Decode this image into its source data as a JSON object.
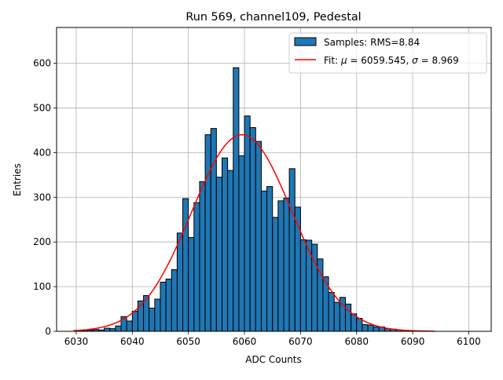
{
  "chart_data": {
    "type": "bar",
    "title": "Run 569, channel109, Pedestal",
    "xlabel": "ADC Counts",
    "ylabel": "Entries",
    "xlim": [
      6026.5,
      6104
    ],
    "ylim": [
      0,
      680
    ],
    "grid": true,
    "legend_position": "top-right",
    "x_ticks": [
      6030,
      6040,
      6050,
      6060,
      6070,
      6080,
      6090,
      6100
    ],
    "y_ticks": [
      0,
      100,
      200,
      300,
      400,
      500,
      600
    ],
    "histogram": {
      "name": "Samples: RMS=8.84",
      "color": "#1f77b4",
      "bin_width": 1,
      "bin_starts": [
        6030,
        6031,
        6032,
        6033,
        6034,
        6035,
        6036,
        6037,
        6038,
        6039,
        6040,
        6041,
        6042,
        6043,
        6044,
        6045,
        6046,
        6047,
        6048,
        6049,
        6050,
        6051,
        6052,
        6053,
        6054,
        6055,
        6056,
        6057,
        6058,
        6059,
        6060,
        6061,
        6062,
        6063,
        6064,
        6065,
        6066,
        6067,
        6068,
        6069,
        6070,
        6071,
        6072,
        6073,
        6074,
        6075,
        6076,
        6077,
        6078,
        6079,
        6080,
        6081,
        6082,
        6083,
        6084,
        6085,
        6086,
        6087,
        6088,
        6089,
        6090,
        6091,
        6092,
        6093
      ],
      "counts": [
        1,
        1,
        3,
        4,
        3,
        7,
        6,
        12,
        33,
        23,
        45,
        68,
        80,
        52,
        72,
        110,
        117,
        138,
        220,
        297,
        210,
        288,
        335,
        440,
        454,
        345,
        388,
        360,
        590,
        393,
        482,
        456,
        425,
        314,
        324,
        255,
        292,
        298,
        364,
        278,
        205,
        204,
        195,
        162,
        122,
        87,
        65,
        76,
        61,
        39,
        29,
        15,
        14,
        10,
        10,
        6,
        5,
        3,
        2,
        1,
        1,
        1,
        1,
        0
      ]
    },
    "fit": {
      "name": "Fit: μ = 6059.545, σ = 8.969",
      "color": "#ff0000",
      "mu": 6059.545,
      "sigma": 8.969,
      "amplitude": 440,
      "x_range": [
        6029.5,
        6094
      ]
    }
  },
  "legend": {
    "samples_prefix": "Samples: RMS=8.84",
    "fit_prefix": "Fit: ",
    "mu_symbol": "μ",
    "mu_text": " = 6059.545, ",
    "sigma_symbol": "σ",
    "sigma_text": " = 8.969"
  }
}
